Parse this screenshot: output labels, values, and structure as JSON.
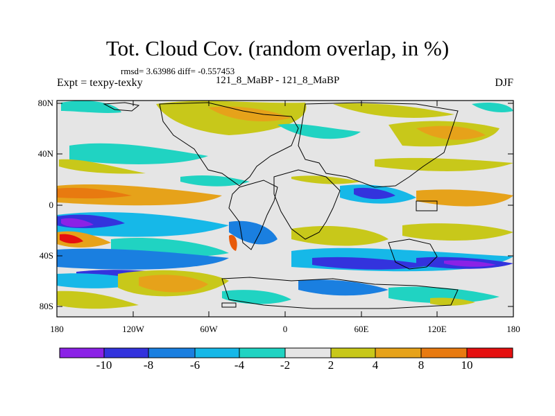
{
  "title": "Tot. Cloud Cov. (random overlap, in %)",
  "stats": "rmsd= 3.63986 diff= -0.557453",
  "experiment": "Expt = texpy-texky",
  "center_label": "121_8_MaBP - 121_8_MaBP",
  "season": "DJF",
  "colors": {
    "background": "#e5e5e5",
    "coast": "#000000",
    "levels": [
      "#8b22e6",
      "#3333dd",
      "#1a7fe0",
      "#16b8e8",
      "#20d3c2",
      "#e5e5e5",
      "#c8c81a",
      "#e6a21a",
      "#e87a10",
      "#e85a0a",
      "#e51010"
    ]
  },
  "map": {
    "lat_ticks": [
      "80N",
      "40N",
      "0",
      "40S",
      "80S"
    ],
    "lon_ticks": [
      "180",
      "120W",
      "60W",
      "0",
      "60E",
      "120E",
      "180"
    ]
  },
  "colorbar": {
    "labels": [
      "-10",
      "-8",
      "-6",
      "-4",
      "-2",
      "2",
      "4",
      "8",
      "10"
    ]
  }
}
